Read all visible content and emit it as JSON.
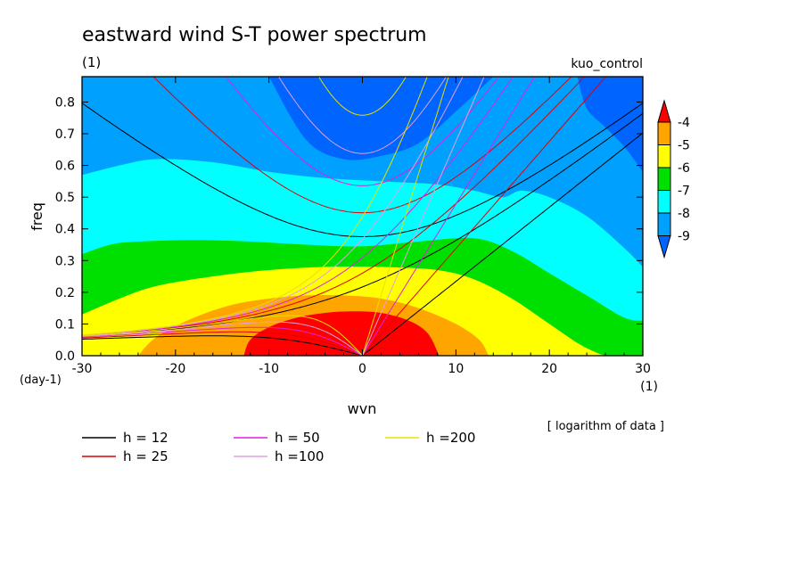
{
  "title": "eastward wind S-T power spectrum",
  "subtitle_left": "(1)",
  "subtitle_right": "kuo_control",
  "note": "[ logarithm of data ]",
  "colors": {
    "fill_levels": [
      "#ff0000",
      "#ffa500",
      "#ffff00",
      "#00e000",
      "#00ffff",
      "#00a0ff",
      "#0064ff"
    ],
    "curve_colors": [
      "#000000",
      "#e00000",
      "#e020e0",
      "#e0a0e0",
      "#e8e000"
    ]
  },
  "chart_data": {
    "type": "contour",
    "title": "eastward wind S-T power spectrum",
    "xlabel": "wvn",
    "ylabel": "freq",
    "x_unit": "(1)",
    "y_unit": "(day-1)",
    "xlim": [
      -30,
      30
    ],
    "ylim": [
      0,
      0.88
    ],
    "x_ticks": [
      -30,
      -20,
      -10,
      0,
      10,
      20,
      30
    ],
    "y_ticks": [
      0.0,
      0.1,
      0.2,
      0.3,
      0.4,
      0.5,
      0.6,
      0.7,
      0.8
    ],
    "contour_levels": [
      -4,
      -5,
      -6,
      -7,
      -8,
      -9
    ],
    "colorbar_labels": [
      "-4",
      "-5",
      "-6",
      "-7",
      "-8",
      "-9"
    ],
    "fill_boundaries": [
      {
        "level": -4,
        "x": [
          -12.7,
          -12,
          -10,
          -7,
          -4,
          -1,
          2,
          5,
          7,
          8.2
        ],
        "y": [
          0.0,
          0.05,
          0.09,
          0.12,
          0.135,
          0.14,
          0.135,
          0.11,
          0.07,
          0.0
        ]
      },
      {
        "level": -5,
        "x": [
          -24,
          -22,
          -18,
          -14,
          -10,
          -6,
          -2,
          2,
          6,
          10,
          12.5,
          13.5
        ],
        "y": [
          0.0,
          0.06,
          0.12,
          0.16,
          0.18,
          0.19,
          0.19,
          0.18,
          0.15,
          0.1,
          0.05,
          0.0
        ]
      },
      {
        "level": -6,
        "x": [
          -30,
          -26,
          -22,
          -16,
          -10,
          -4,
          2,
          8,
          12,
          16,
          20,
          23,
          25,
          26
        ],
        "y": [
          0.13,
          0.18,
          0.22,
          0.25,
          0.27,
          0.28,
          0.28,
          0.27,
          0.24,
          0.18,
          0.1,
          0.04,
          0.01,
          0.0
        ]
      },
      {
        "level": -7,
        "x": [
          -30,
          -27,
          -24,
          -18,
          -12,
          -6,
          0,
          6,
          12,
          16,
          20,
          24,
          28,
          30
        ],
        "y": [
          0.32,
          0.35,
          0.36,
          0.365,
          0.36,
          0.35,
          0.345,
          0.36,
          0.37,
          0.33,
          0.26,
          0.19,
          0.12,
          0.11
        ]
      },
      {
        "level": -8,
        "x": [
          -30,
          -26,
          -22,
          -16,
          -10,
          -4,
          2,
          8,
          12,
          15,
          17,
          20,
          24,
          28,
          30
        ],
        "y": [
          0.57,
          0.6,
          0.62,
          0.61,
          0.58,
          0.56,
          0.55,
          0.54,
          0.52,
          0.5,
          0.52,
          0.5,
          0.44,
          0.34,
          0.28
        ]
      },
      {
        "level": -9,
        "x": [
          -30,
          -24,
          -18,
          -14,
          -10,
          -6,
          -2,
          2,
          6,
          10,
          14,
          18,
          24,
          28,
          30
        ],
        "y": [
          0.78,
          0.8,
          0.8,
          0.78,
          0.75,
          0.7,
          0.68,
          0.69,
          0.72,
          0.75,
          0.76,
          0.75,
          0.73,
          0.71,
          0.7
        ]
      },
      {
        "level": -10,
        "x": [
          -10,
          -6,
          -2,
          2,
          6,
          10,
          14
        ],
        "y": [
          0.88,
          0.68,
          0.62,
          0.63,
          0.67,
          0.77,
          0.88
        ]
      },
      {
        "level": -10,
        "x": [
          23,
          24,
          26,
          28,
          30
        ],
        "y": [
          0.88,
          0.78,
          0.72,
          0.66,
          0.58
        ]
      }
    ],
    "series": [
      {
        "name": "h = 12",
        "equivalent_depth": 12,
        "color": "#000000"
      },
      {
        "name": "h = 25",
        "equivalent_depth": 25,
        "color": "#e00000"
      },
      {
        "name": "h = 50",
        "equivalent_depth": 50,
        "color": "#e020e0"
      },
      {
        "name": "h =100",
        "equivalent_depth": 100,
        "color": "#e0a0e0"
      },
      {
        "name": "h =200",
        "equivalent_depth": 200,
        "color": "#e8e000"
      }
    ],
    "grid": false,
    "legend_position": "bottom"
  }
}
